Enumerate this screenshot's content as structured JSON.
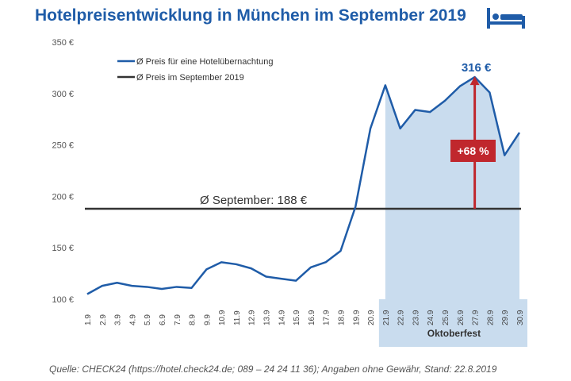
{
  "title": "Hotelpreisentwicklung in München im September 2019",
  "source": "Quelle: CHECK24 (https://hotel.check24.de; 089 – 24 24 11 36); Angaben ohne Gewähr, Stand: 22.8.2019",
  "icon": "bed-icon",
  "colors": {
    "accent": "#1f5ca8",
    "line": "#1f5ca8",
    "avg": "#333333",
    "highlight": "#c9dcee",
    "badge": "#c0272d"
  },
  "chart_data": {
    "type": "line",
    "categories": [
      "1.9",
      "2.9",
      "3.9",
      "4.9",
      "5.9",
      "6.9",
      "7.9",
      "8.9",
      "9.9",
      "10.9",
      "11.9",
      "12.9",
      "13.9",
      "14.9",
      "15.9",
      "16.9",
      "17.9",
      "18.9",
      "19.9",
      "20.9",
      "21.9",
      "22.9",
      "23.9",
      "24.9",
      "25.9",
      "26.9",
      "27.9",
      "28.9",
      "29.9",
      "30.9"
    ],
    "series": [
      {
        "name": "Ø Preis für eine Hotelübernachtung",
        "values": [
          105,
          113,
          116,
          113,
          112,
          110,
          112,
          111,
          129,
          136,
          134,
          130,
          122,
          120,
          118,
          131,
          136,
          147,
          190,
          266,
          308,
          266,
          284,
          282,
          293,
          307,
          316,
          301,
          240,
          262
        ]
      },
      {
        "name": "Ø Preis im September 2019",
        "constant": 188
      }
    ],
    "yticks": [
      "100 €",
      "150 €",
      "200 €",
      "250 €",
      "300 €",
      "350 €"
    ],
    "ylim": [
      100,
      350
    ],
    "legend": [
      "Ø Preis für eine Hotelübernachtung",
      "Ø Preis im September 2019"
    ],
    "avg_label": "Ø September: 188 €",
    "peak_label": "316 €",
    "increase_label": "+68 %",
    "highlight_label": "Oktoberfest",
    "highlight_range": [
      "21.9",
      "30.9"
    ]
  }
}
